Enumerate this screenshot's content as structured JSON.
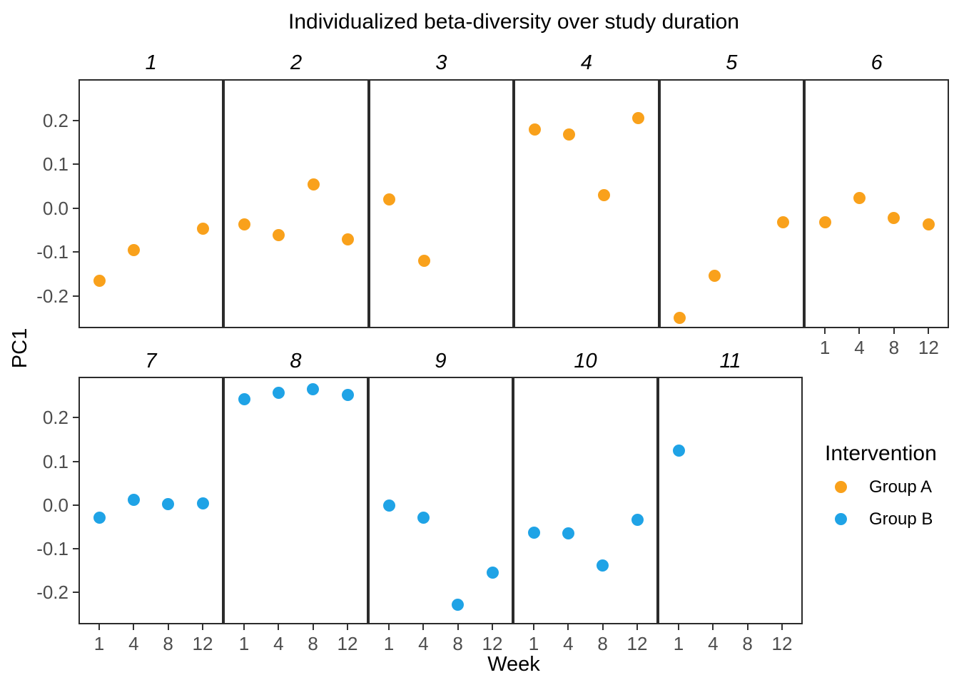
{
  "chart_data": {
    "type": "scatter",
    "title": "Individualized beta-diversity over study duration",
    "xlabel": "Week",
    "ylabel": "PC1",
    "x_ticks": [
      1,
      4,
      8,
      12
    ],
    "y_ticks": [
      0.2,
      0.1,
      0.0,
      -0.1,
      -0.2
    ],
    "ylim": [
      -0.274,
      0.294
    ],
    "grid": false,
    "facet_layout": {
      "rows": 2,
      "top_row_facets": 6,
      "bottom_row_facets": 5
    },
    "legend": {
      "title": "Intervention",
      "position": "right",
      "entries": [
        {
          "label": "Group A",
          "color": "#F9A11B"
        },
        {
          "label": "Group B",
          "color": "#1FA3E6"
        }
      ]
    },
    "facets": [
      {
        "label": "1",
        "group": "Group A",
        "points": [
          {
            "week": 1,
            "pc1": -0.165
          },
          {
            "week": 4,
            "pc1": -0.096
          },
          {
            "week": 12,
            "pc1": -0.047
          }
        ]
      },
      {
        "label": "2",
        "group": "Group A",
        "points": [
          {
            "week": 1,
            "pc1": -0.038
          },
          {
            "week": 4,
            "pc1": -0.061
          },
          {
            "week": 8,
            "pc1": 0.054
          },
          {
            "week": 12,
            "pc1": -0.071
          }
        ]
      },
      {
        "label": "3",
        "group": "Group A",
        "points": [
          {
            "week": 1,
            "pc1": 0.019
          },
          {
            "week": 4,
            "pc1": -0.121
          }
        ]
      },
      {
        "label": "4",
        "group": "Group A",
        "points": [
          {
            "week": 1,
            "pc1": 0.18
          },
          {
            "week": 4,
            "pc1": 0.168
          },
          {
            "week": 8,
            "pc1": 0.03
          },
          {
            "week": 12,
            "pc1": 0.205
          }
        ]
      },
      {
        "label": "5",
        "group": "Group A",
        "points": [
          {
            "week": 1,
            "pc1": -0.25
          },
          {
            "week": 4,
            "pc1": -0.155
          },
          {
            "week": 12,
            "pc1": -0.033
          }
        ]
      },
      {
        "label": "6",
        "group": "Group A",
        "points": [
          {
            "week": 1,
            "pc1": -0.033
          },
          {
            "week": 4,
            "pc1": 0.023
          },
          {
            "week": 8,
            "pc1": -0.022
          },
          {
            "week": 12,
            "pc1": -0.038
          }
        ]
      },
      {
        "label": "7",
        "group": "Group B",
        "points": [
          {
            "week": 1,
            "pc1": -0.029
          },
          {
            "week": 4,
            "pc1": 0.012
          },
          {
            "week": 8,
            "pc1": 0.001
          },
          {
            "week": 12,
            "pc1": 0.003
          }
        ]
      },
      {
        "label": "8",
        "group": "Group B",
        "points": [
          {
            "week": 1,
            "pc1": 0.243
          },
          {
            "week": 4,
            "pc1": 0.257
          },
          {
            "week": 8,
            "pc1": 0.266
          },
          {
            "week": 12,
            "pc1": 0.253
          }
        ]
      },
      {
        "label": "9",
        "group": "Group B",
        "points": [
          {
            "week": 1,
            "pc1": -0.002
          },
          {
            "week": 4,
            "pc1": -0.029
          },
          {
            "week": 8,
            "pc1": -0.229
          },
          {
            "week": 12,
            "pc1": -0.155
          }
        ]
      },
      {
        "label": "10",
        "group": "Group B",
        "points": [
          {
            "week": 1,
            "pc1": -0.064
          },
          {
            "week": 4,
            "pc1": -0.065
          },
          {
            "week": 8,
            "pc1": -0.139
          },
          {
            "week": 12,
            "pc1": -0.035
          }
        ]
      },
      {
        "label": "11",
        "group": "Group B",
        "points": [
          {
            "week": 1,
            "pc1": 0.124
          }
        ]
      }
    ]
  }
}
